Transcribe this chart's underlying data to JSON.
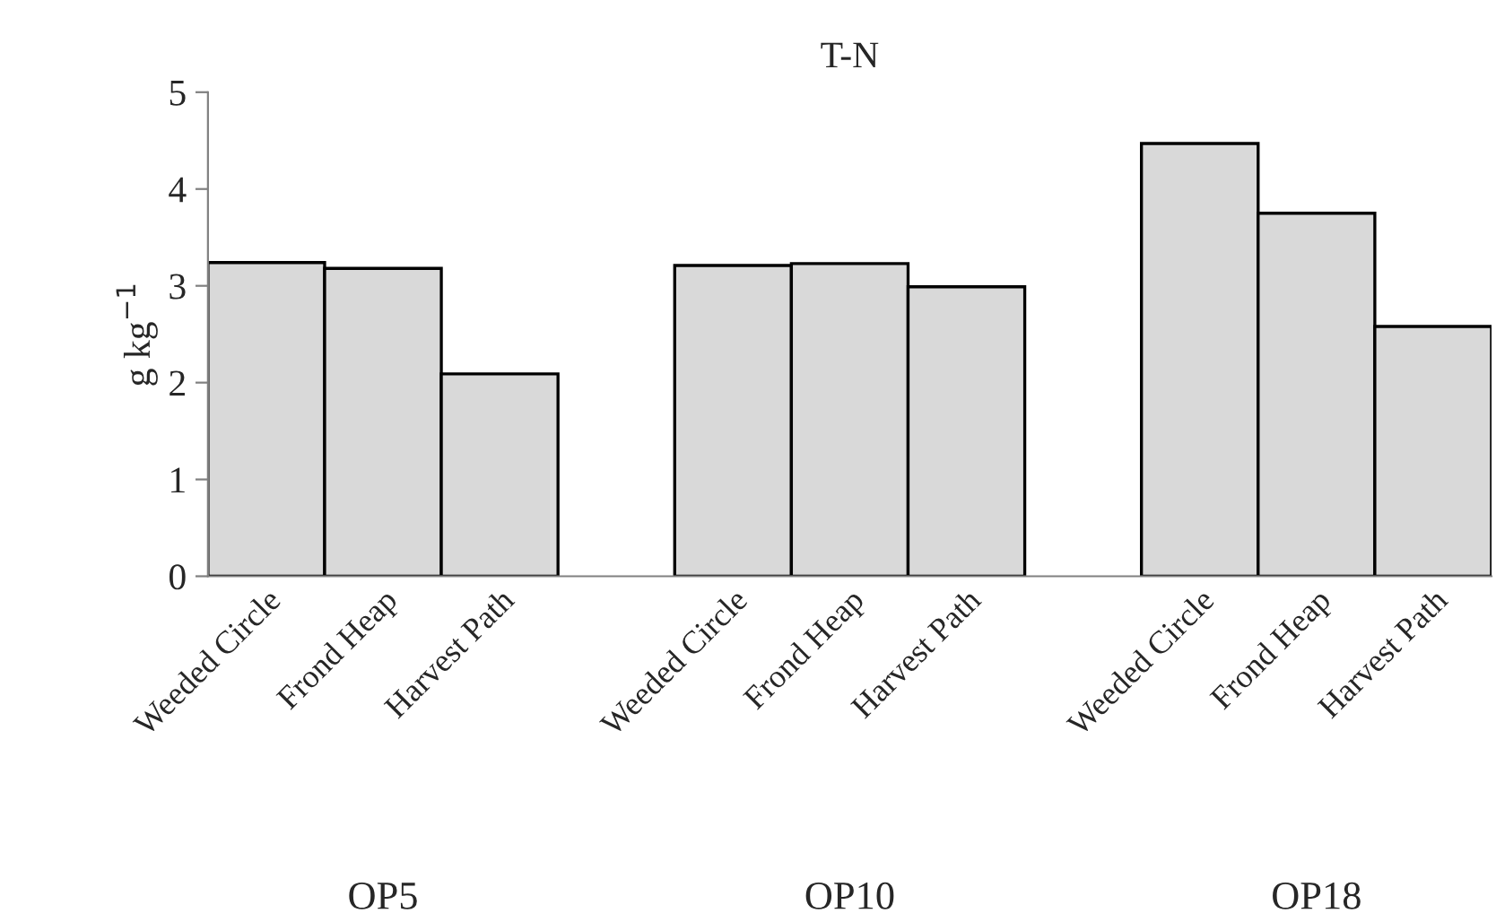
{
  "chart_data": {
    "type": "bar",
    "title": "T-N",
    "ylabel": "g kg$^{−1}$",
    "categories": [
      "Weeded Circle",
      "Frond Heap",
      "Harvest Path",
      null,
      "Weeded Circle",
      "Frond Heap",
      "Harvest Path",
      null,
      "Weeded Circle",
      "Frond Heap",
      "Harvest Path"
    ],
    "values": [
      3.24,
      3.18,
      2.09,
      null,
      3.21,
      3.23,
      2.99,
      null,
      4.47,
      3.75,
      2.58
    ],
    "color": "#d9d9d9",
    "annotations": [
      "OP5",
      "OP10",
      "OP18"
    ],
    "ylim": [
      0,
      5
    ],
    "yticks": [
      0,
      1,
      2,
      3,
      4,
      5
    ],
    "grid": false,
    "legend": false
  }
}
